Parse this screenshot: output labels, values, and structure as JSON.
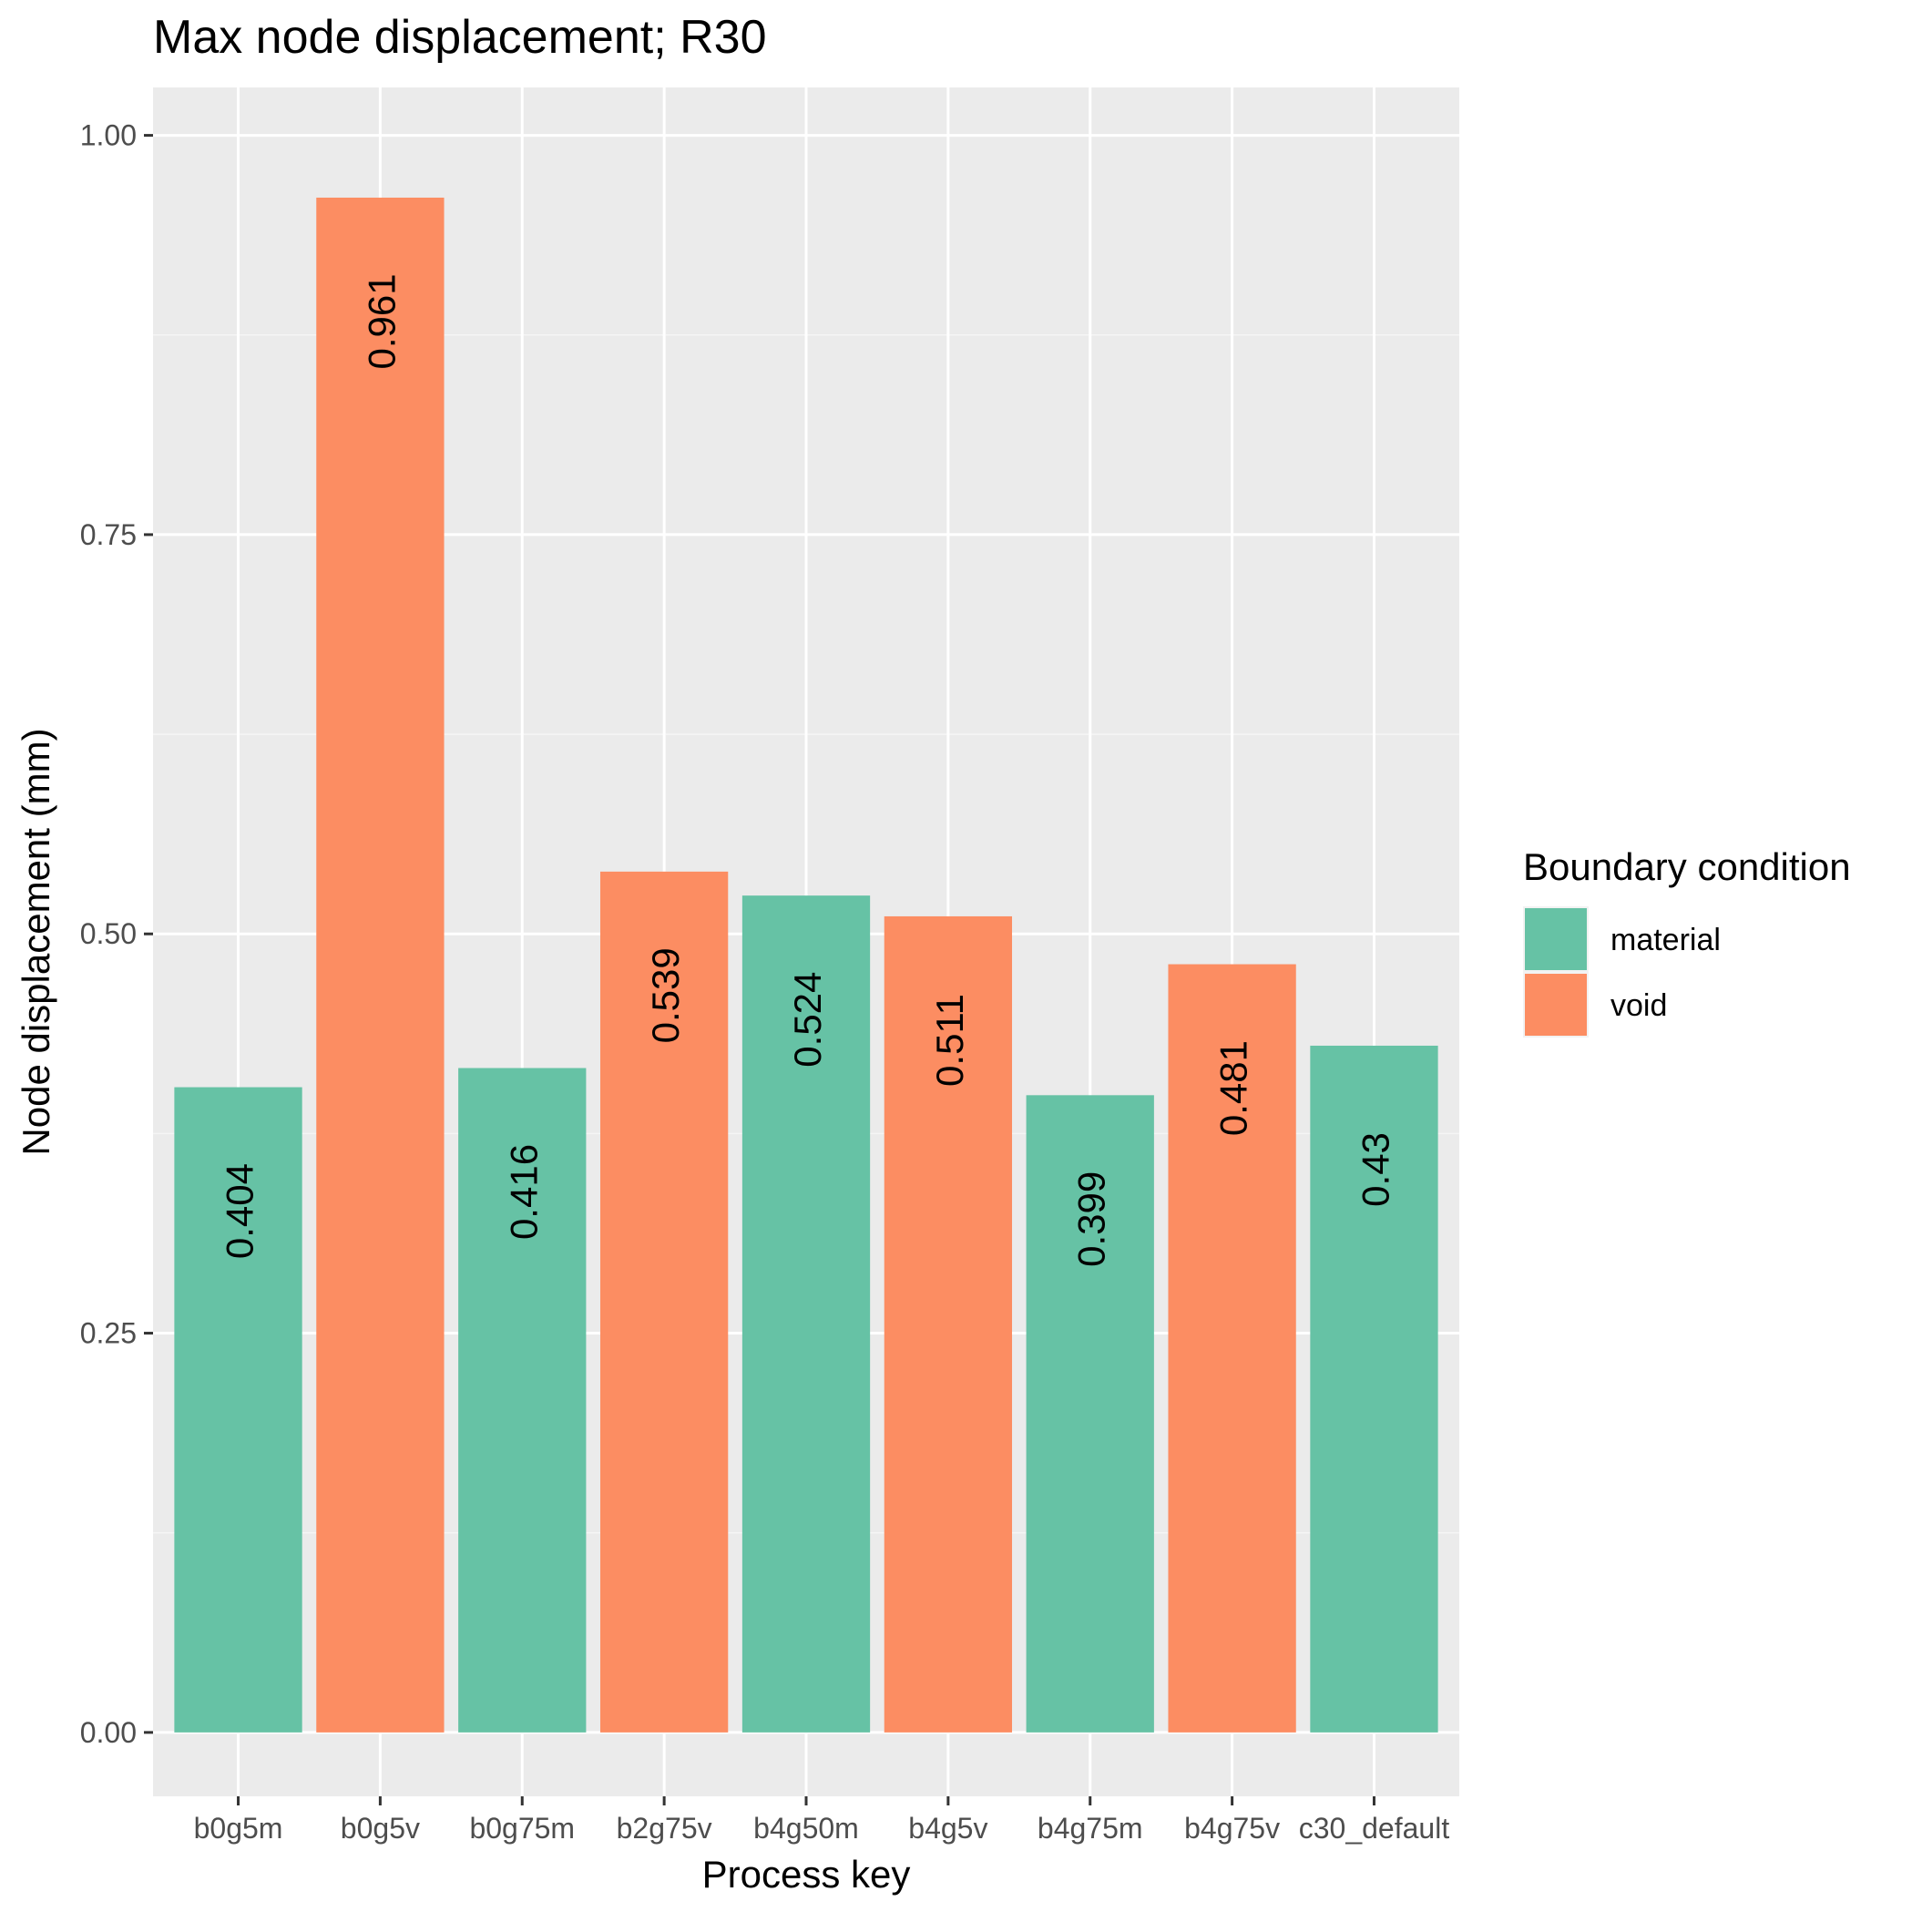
{
  "chart_data": {
    "type": "bar",
    "title": "Max node displacement; R30",
    "xlabel": "Process key",
    "ylabel": "Node displacement (mm)",
    "ylim": [
      -0.04,
      1.03
    ],
    "yticks": [
      0.0,
      0.25,
      0.5,
      0.75,
      1.0
    ],
    "ytick_labels": [
      "0.00",
      "0.25",
      "0.50",
      "0.75",
      "1.00"
    ],
    "grid": true,
    "categories": [
      "b0g5m",
      "b0g5v",
      "b0g75m",
      "b2g75v",
      "b4g50m",
      "b4g5v",
      "b4g75m",
      "b4g75v",
      "c30_default"
    ],
    "values": [
      0.404,
      0.961,
      0.416,
      0.539,
      0.524,
      0.511,
      0.399,
      0.481,
      0.43
    ],
    "value_labels": [
      "0.404",
      "0.961",
      "0.416",
      "0.539",
      "0.524",
      "0.511",
      "0.399",
      "0.481",
      "0.43"
    ],
    "groups": [
      "material",
      "void",
      "material",
      "void",
      "material",
      "void",
      "material",
      "void",
      "material"
    ],
    "legend": {
      "title": "Boundary condition",
      "placement": "right",
      "entries": [
        {
          "name": "material",
          "color": "#66c2a5"
        },
        {
          "name": "void",
          "color": "#fc8d62"
        }
      ]
    },
    "colors": {
      "panel_background": "#ebebeb",
      "grid_major": "#ffffff",
      "grid_minor": "#f5f5f5"
    }
  }
}
